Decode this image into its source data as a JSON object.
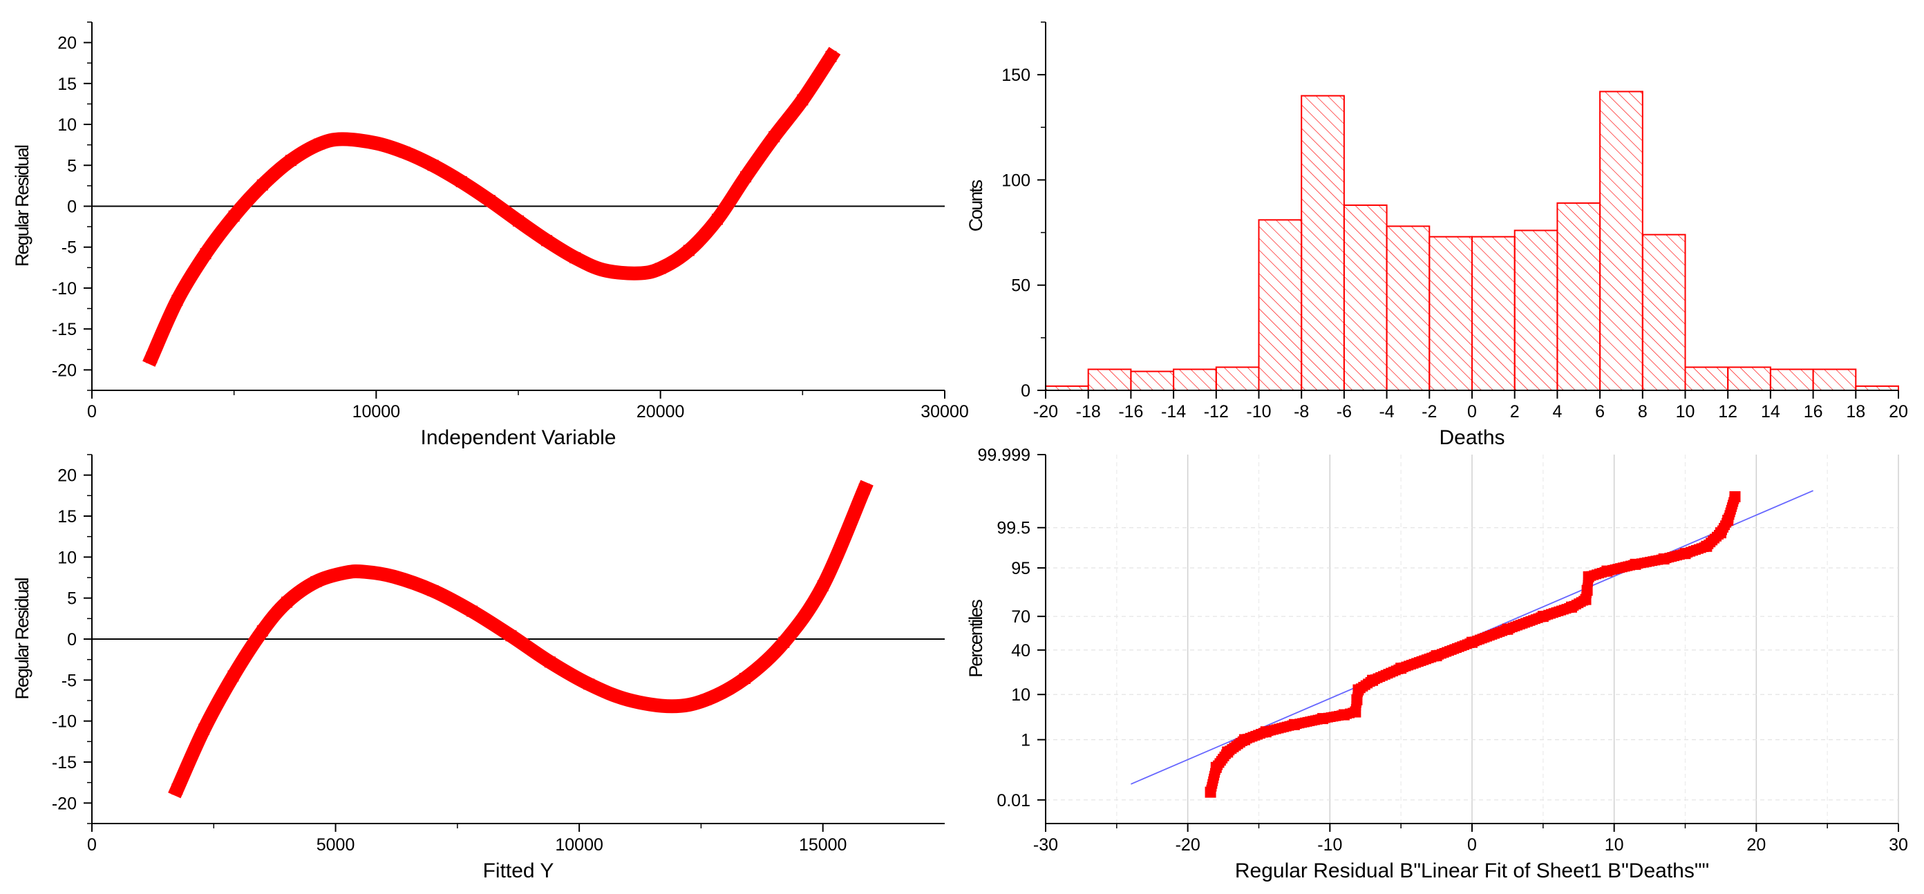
{
  "colors": {
    "series": "#ff0000",
    "fit_line": "#6666ff",
    "axis": "#000000",
    "grid": "#d0d0d0"
  },
  "chart_data": [
    {
      "id": "residual_vs_independent",
      "type": "scatter",
      "title": "",
      "xlabel": "Independent Variable",
      "ylabel": "Regular Residual",
      "xlim": [
        0,
        30000
      ],
      "ylim": [
        -22.5,
        22.5
      ],
      "x_ticks": [
        0,
        10000,
        20000,
        30000
      ],
      "x_tick_labels": [
        "0",
        "10000",
        "20000",
        "30000"
      ],
      "y_ticks": [
        -20,
        -15,
        -10,
        -5,
        0,
        5,
        10,
        15,
        20
      ],
      "y_tick_labels": [
        "-20",
        "-15",
        "-10",
        "-5",
        "0",
        "5",
        "10",
        "15",
        "20"
      ],
      "reference_line_y": 0,
      "x": [
        2100,
        3000,
        4000,
        5000,
        6000,
        7000,
        8000,
        8800,
        10000,
        11000,
        12000,
        13000,
        14000,
        15000,
        16000,
        17000,
        18000,
        19200,
        20000,
        21000,
        22000,
        23000,
        24000,
        25000,
        26000
      ],
      "y": [
        -18.5,
        -11.5,
        -5.8,
        -1.2,
        2.6,
        5.6,
        7.6,
        8.2,
        7.7,
        6.6,
        5.0,
        3.0,
        0.7,
        -1.8,
        -4.2,
        -6.3,
        -7.8,
        -8.2,
        -7.6,
        -5.4,
        -1.6,
        3.6,
        8.5,
        13.0,
        18.3
      ]
    },
    {
      "id": "residual_histogram",
      "type": "bar",
      "title": "",
      "xlabel": "Deaths",
      "ylabel": "Counts",
      "xlim": [
        -20,
        20
      ],
      "ylim": [
        0,
        175
      ],
      "x_ticks": [
        -20,
        -18,
        -16,
        -14,
        -12,
        -10,
        -8,
        -6,
        -4,
        -2,
        0,
        2,
        4,
        6,
        8,
        10,
        12,
        14,
        16,
        18,
        20
      ],
      "x_tick_labels": [
        "-20",
        "-18",
        "-16",
        "-14",
        "-12",
        "-10",
        "-8",
        "-6",
        "-4",
        "-2",
        "0",
        "2",
        "4",
        "6",
        "8",
        "10",
        "12",
        "14",
        "16",
        "18",
        "20"
      ],
      "y_ticks": [
        0,
        50,
        100,
        150
      ],
      "y_tick_labels": [
        "0",
        "50",
        "100",
        "150"
      ],
      "bin_edges": [
        -20,
        -18,
        -16,
        -14,
        -12,
        -10,
        -8,
        -6,
        -4,
        -2,
        0,
        2,
        4,
        6,
        8,
        10,
        12,
        14,
        16,
        18,
        20
      ],
      "values": [
        2,
        10,
        9,
        10,
        11,
        81,
        140,
        88,
        78,
        73,
        73,
        76,
        89,
        142,
        74,
        11,
        11,
        10,
        10,
        2
      ],
      "fill_pattern": "diagonal-hatch"
    },
    {
      "id": "residual_vs_fitted",
      "type": "scatter",
      "title": "",
      "xlabel": "Fitted Y",
      "ylabel": "Regular Residual",
      "xlim": [
        0,
        17500
      ],
      "ylim": [
        -22.5,
        22.5
      ],
      "x_ticks": [
        0,
        5000,
        10000,
        15000
      ],
      "x_tick_labels": [
        "0",
        "5000",
        "10000",
        "15000"
      ],
      "y_ticks": [
        -20,
        -15,
        -10,
        -5,
        0,
        5,
        10,
        15,
        20
      ],
      "y_tick_labels": [
        "-20",
        "-15",
        "-10",
        "-5",
        "0",
        "5",
        "10",
        "15",
        "20"
      ],
      "reference_line_y": 0,
      "x": [
        1750,
        2300,
        2900,
        3500,
        4000,
        4600,
        5200,
        5600,
        6200,
        7000,
        7800,
        8600,
        9400,
        10200,
        11000,
        11900,
        12600,
        13400,
        14200,
        15000,
        15850
      ],
      "y": [
        -18.3,
        -11.0,
        -4.5,
        1.0,
        4.5,
        7.0,
        8.1,
        8.2,
        7.6,
        5.9,
        3.4,
        0.4,
        -2.8,
        -5.5,
        -7.4,
        -8.2,
        -7.4,
        -4.8,
        -0.4,
        6.5,
        18.3
      ]
    },
    {
      "id": "normal_probability",
      "type": "scatter",
      "title": "",
      "xlabel": "Regular Residual B\"Linear Fit of Sheet1 B\"Deaths\"\"",
      "ylabel": "Percentiles",
      "xlim": [
        -30,
        30
      ],
      "ylim": [
        0.001,
        99.999
      ],
      "x_ticks": [
        -30,
        -20,
        -10,
        0,
        10,
        20,
        30
      ],
      "x_tick_labels": [
        "-30",
        "-20",
        "-10",
        "0",
        "10",
        "20",
        "30"
      ],
      "y_ticks": [
        0.01,
        1,
        10,
        40,
        70,
        95,
        99.5,
        99.999
      ],
      "y_tick_labels": [
        "0.01",
        "1",
        "10",
        "40",
        "70",
        "95",
        "99.5",
        "99.999"
      ],
      "y_scale": "probability",
      "fit_line": {
        "x": [
          -24,
          24
        ],
        "y": [
          0.04,
          99.97
        ]
      },
      "x": [
        -18.4,
        -18.0,
        -17.2,
        -16.0,
        -14.5,
        -12.5,
        -10.5,
        -9.0,
        -8.2,
        -8.1,
        -8.0,
        -7.0,
        -5.0,
        -2.5,
        0.0,
        2.5,
        5.0,
        7.0,
        8.0,
        8.1,
        8.2,
        9.5,
        11.5,
        13.5,
        15.0,
        16.5,
        17.5,
        18.0,
        18.5
      ],
      "y": [
        0.02,
        0.15,
        0.45,
        1.0,
        1.6,
        2.4,
        3.3,
        4.0,
        4.6,
        8.0,
        12.0,
        17.0,
        25.0,
        35.0,
        47.0,
        59.0,
        70.0,
        77.0,
        82.0,
        87.0,
        92.5,
        94.2,
        95.8,
        96.8,
        97.6,
        98.4,
        99.3,
        99.7,
        99.95
      ]
    }
  ]
}
